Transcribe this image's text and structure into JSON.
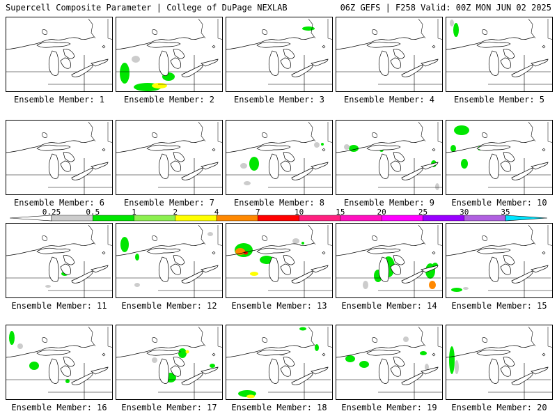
{
  "header": {
    "left": "Supercell Composite Parameter | College of DuPage NEXLAB",
    "right": "06Z GEFS | F258 Valid: 00Z MON JUN 02 2025"
  },
  "member_label_prefix": "Ensemble Member: ",
  "members": [
    {
      "id": "1",
      "blobs": []
    },
    {
      "id": "2",
      "blobs": [
        [
          12,
          80,
          14,
          30,
          "#00e600"
        ],
        [
          45,
          100,
          40,
          12,
          "#00e600"
        ],
        [
          62,
          98,
          22,
          8,
          "#ffff00"
        ],
        [
          75,
          85,
          18,
          12,
          "#00e600"
        ],
        [
          28,
          60,
          12,
          10,
          "#cccccc"
        ]
      ]
    },
    {
      "id": "3",
      "blobs": [
        [
          118,
          16,
          18,
          6,
          "#00e600"
        ]
      ]
    },
    {
      "id": "4",
      "blobs": []
    },
    {
      "id": "5",
      "blobs": [
        [
          14,
          18,
          8,
          20,
          "#00e600"
        ],
        [
          8,
          8,
          6,
          10,
          "#cccccc"
        ]
      ]
    },
    {
      "id": "6",
      "blobs": []
    },
    {
      "id": "7",
      "blobs": []
    },
    {
      "id": "8",
      "blobs": [
        [
          40,
          62,
          14,
          20,
          "#00e600"
        ],
        [
          25,
          65,
          10,
          8,
          "#cccccc"
        ],
        [
          30,
          90,
          10,
          6,
          "#cccccc"
        ],
        [
          130,
          35,
          8,
          8,
          "#cccccc"
        ],
        [
          138,
          34,
          4,
          4,
          "#00e600"
        ]
      ]
    },
    {
      "id": "9",
      "blobs": [
        [
          25,
          40,
          14,
          10,
          "#00e600"
        ],
        [
          15,
          38,
          8,
          8,
          "#cccccc"
        ],
        [
          65,
          42,
          6,
          6,
          "#00e600"
        ],
        [
          140,
          62,
          8,
          10,
          "#00e600"
        ],
        [
          145,
          95,
          6,
          10,
          "#cccccc"
        ]
      ]
    },
    {
      "id": "10",
      "blobs": [
        [
          22,
          14,
          22,
          14,
          "#00e600"
        ],
        [
          10,
          40,
          8,
          10,
          "#00e600"
        ],
        [
          26,
          62,
          10,
          14,
          "#00e600"
        ],
        [
          48,
          40,
          6,
          6,
          "#00e600"
        ]
      ]
    },
    {
      "id": "11",
      "blobs": [
        [
          84,
          72,
          10,
          6,
          "#00e600"
        ],
        [
          60,
          90,
          8,
          4,
          "#cccccc"
        ]
      ]
    },
    {
      "id": "12",
      "blobs": [
        [
          12,
          30,
          12,
          22,
          "#00e600"
        ],
        [
          30,
          48,
          6,
          10,
          "#00e600"
        ],
        [
          30,
          88,
          8,
          6,
          "#cccccc"
        ],
        [
          135,
          15,
          8,
          6,
          "#cccccc"
        ]
      ]
    },
    {
      "id": "13",
      "blobs": [
        [
          25,
          38,
          26,
          20,
          "#00e600"
        ],
        [
          20,
          40,
          14,
          10,
          "#ff8800"
        ],
        [
          28,
          42,
          6,
          5,
          "#ff0000"
        ],
        [
          58,
          52,
          20,
          12,
          "#00e600"
        ],
        [
          40,
          72,
          12,
          6,
          "#ffff00"
        ],
        [
          100,
          25,
          10,
          8,
          "#cccccc"
        ],
        [
          110,
          28,
          4,
          4,
          "#00e600"
        ]
      ]
    },
    {
      "id": "14",
      "blobs": [
        [
          75,
          62,
          18,
          30,
          "#00e600"
        ],
        [
          60,
          75,
          12,
          18,
          "#00e600"
        ],
        [
          135,
          68,
          14,
          22,
          "#00e600"
        ],
        [
          138,
          88,
          10,
          12,
          "#ff8800"
        ],
        [
          142,
          60,
          8,
          8,
          "#00e600"
        ],
        [
          42,
          88,
          8,
          12,
          "#cccccc"
        ]
      ]
    },
    {
      "id": "15",
      "blobs": [
        [
          15,
          95,
          16,
          6,
          "#00e600"
        ],
        [
          28,
          93,
          8,
          4,
          "#cccccc"
        ]
      ]
    },
    {
      "id": "16",
      "blobs": [
        [
          8,
          18,
          8,
          20,
          "#00e600"
        ],
        [
          40,
          58,
          14,
          12,
          "#00e600"
        ],
        [
          88,
          80,
          6,
          6,
          "#00e600"
        ],
        [
          20,
          30,
          8,
          8,
          "#cccccc"
        ]
      ]
    },
    {
      "id": "17",
      "blobs": [
        [
          95,
          40,
          12,
          14,
          "#00e600"
        ],
        [
          102,
          38,
          5,
          5,
          "#ffff00"
        ],
        [
          78,
          75,
          16,
          14,
          "#00e600"
        ],
        [
          138,
          58,
          8,
          6,
          "#00e600"
        ],
        [
          55,
          50,
          8,
          8,
          "#cccccc"
        ]
      ]
    },
    {
      "id": "18",
      "blobs": [
        [
          130,
          32,
          6,
          10,
          "#00e600"
        ],
        [
          110,
          5,
          10,
          5,
          "#00e600"
        ],
        [
          30,
          98,
          26,
          10,
          "#00e600"
        ],
        [
          35,
          102,
          12,
          5,
          "#ffff00"
        ],
        [
          80,
          40,
          10,
          8,
          "#cccccc"
        ]
      ]
    },
    {
      "id": "19",
      "blobs": [
        [
          20,
          48,
          14,
          10,
          "#00e600"
        ],
        [
          40,
          56,
          14,
          10,
          "#00e600"
        ],
        [
          125,
          40,
          10,
          6,
          "#00e600"
        ],
        [
          100,
          20,
          8,
          8,
          "#cccccc"
        ],
        [
          130,
          60,
          6,
          10,
          "#cccccc"
        ]
      ]
    },
    {
      "id": "20",
      "blobs": [
        [
          8,
          50,
          8,
          40,
          "#00e600"
        ],
        [
          15,
          60,
          6,
          20,
          "#cccccc"
        ]
      ]
    }
  ],
  "colorbar": {
    "ticks": [
      "0.25",
      "0.5",
      "1",
      "2",
      "4",
      "7",
      "10",
      "15",
      "20",
      "25",
      "30",
      "35"
    ],
    "colors": [
      "#ffffff",
      "#cccccc",
      "#00e600",
      "#8cf050",
      "#ffff00",
      "#ff8800",
      "#ff0000",
      "#ff2080",
      "#ff10c0",
      "#ff00ff",
      "#9900ff",
      "#b060e0",
      "#00e5ff"
    ]
  }
}
